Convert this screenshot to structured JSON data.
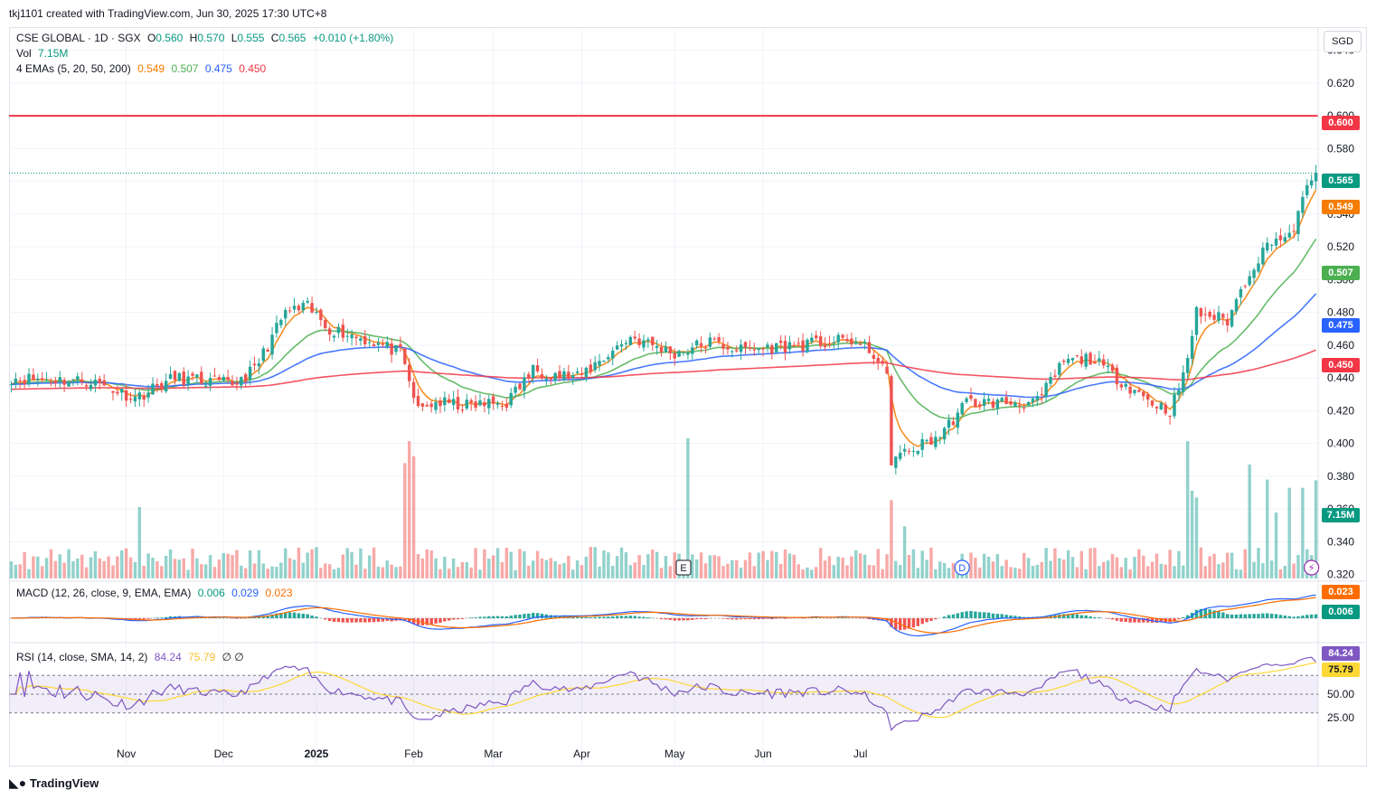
{
  "header": {
    "author_line": "tkj1101 created with TradingView.com, Jun 30, 2025 17:30 UTC+8"
  },
  "currency": "SGD",
  "legend": {
    "symbol": "CSE GLOBAL · 1D · SGX",
    "o_label": "O",
    "o_val": "0.560",
    "h_label": "H",
    "h_val": "0.570",
    "l_label": "L",
    "l_val": "0.555",
    "c_label": "C",
    "c_val": "0.565",
    "change": "+0.010 (+1.80%)",
    "vol_label": "Vol",
    "vol_val": "7.15M",
    "ema_label": "4 EMAs (5, 20, 50, 200)",
    "ema5": "0.549",
    "ema20": "0.507",
    "ema50": "0.475",
    "ema200": "0.450",
    "macd_label": "MACD (12, 26, close, 9, EMA, EMA)",
    "macd_hist": "0.006",
    "macd_line": "0.029",
    "macd_signal": "0.023",
    "rsi_label": "RSI (14, close, SMA, 14, 2)",
    "rsi_val": "84.24",
    "rsi_ma": "75.79",
    "rsi_ext": "∅ ∅"
  },
  "price_tags": {
    "resistance": "0.600",
    "last": "0.565",
    "ema5": "0.549",
    "ema20": "0.507",
    "ema50": "0.475",
    "ema200": "0.450",
    "vol": "7.15M",
    "macd_signal": "0.023",
    "macd_hist": "0.006",
    "rsi": "84.24",
    "rsi_ma": "75.79"
  },
  "colors": {
    "up": "#26a69a",
    "down": "#ef5350",
    "ema5": "#f57c00",
    "ema20": "#4caf50",
    "ema50": "#2962ff",
    "ema200": "#f23645",
    "rsi": "#7e57c2",
    "rsi_ma": "#fdd835",
    "resistance": "#f23645"
  },
  "event_markers": {
    "earnings": "E",
    "dividend": "D"
  },
  "brand": "TradingView",
  "chart_data": {
    "type": "candlestick",
    "title": "CSE GLOBAL · 1D · SGX",
    "price_axis_ticks": [
      "0.640",
      "0.620",
      "0.600",
      "0.580",
      "0.560",
      "0.540",
      "0.520",
      "0.500",
      "0.480",
      "0.460",
      "0.440",
      "0.420",
      "0.400",
      "0.380",
      "0.360",
      "0.340",
      "0.320"
    ],
    "ylim": [
      0.317,
      0.653
    ],
    "time_labels": [
      "Nov",
      "Dec",
      "2025",
      "Feb",
      "Mar",
      "Apr",
      "May",
      "Jun",
      "Jul"
    ],
    "resistance_level": 0.6,
    "rsi_axis_ticks": [
      "25.00",
      "50.00"
    ],
    "rsi_bands": [
      30,
      70
    ],
    "series_last_values": {
      "EMA5": 0.549,
      "EMA20": 0.507,
      "EMA50": 0.475,
      "EMA200": 0.45
    },
    "last_candle": {
      "open": 0.56,
      "high": 0.57,
      "low": 0.555,
      "close": 0.565,
      "volume": "7.15M"
    },
    "anchors": [
      {
        "day": 0,
        "price": 0.44
      },
      {
        "day": 18,
        "price": 0.438
      },
      {
        "day": 28,
        "price": 0.428
      },
      {
        "day": 37,
        "price": 0.44
      },
      {
        "day": 50,
        "price": 0.436
      },
      {
        "day": 55,
        "price": 0.445
      },
      {
        "day": 62,
        "price": 0.48
      },
      {
        "day": 67,
        "price": 0.483
      },
      {
        "day": 72,
        "price": 0.47
      },
      {
        "day": 82,
        "price": 0.462
      },
      {
        "day": 88,
        "price": 0.455
      },
      {
        "day": 92,
        "price": 0.42
      },
      {
        "day": 96,
        "price": 0.425
      },
      {
        "day": 103,
        "price": 0.423
      },
      {
        "day": 112,
        "price": 0.425
      },
      {
        "day": 118,
        "price": 0.445
      },
      {
        "day": 128,
        "price": 0.44
      },
      {
        "day": 140,
        "price": 0.465
      },
      {
        "day": 150,
        "price": 0.455
      },
      {
        "day": 158,
        "price": 0.462
      },
      {
        "day": 165,
        "price": 0.457
      },
      {
        "day": 178,
        "price": 0.46
      },
      {
        "day": 190,
        "price": 0.463
      },
      {
        "day": 195,
        "price": 0.455
      },
      {
        "day": 198,
        "price": 0.44
      },
      {
        "day": 199,
        "price": 0.39
      },
      {
        "day": 203,
        "price": 0.395
      },
      {
        "day": 210,
        "price": 0.405
      },
      {
        "day": 216,
        "price": 0.425
      },
      {
        "day": 225,
        "price": 0.425
      },
      {
        "day": 232,
        "price": 0.425
      },
      {
        "day": 238,
        "price": 0.45
      },
      {
        "day": 244,
        "price": 0.452
      },
      {
        "day": 250,
        "price": 0.44
      },
      {
        "day": 258,
        "price": 0.425
      },
      {
        "day": 262,
        "price": 0.42
      },
      {
        "day": 265,
        "price": 0.44
      },
      {
        "day": 268,
        "price": 0.48
      },
      {
        "day": 275,
        "price": 0.475
      },
      {
        "day": 280,
        "price": 0.505
      },
      {
        "day": 285,
        "price": 0.525
      },
      {
        "day": 289,
        "price": 0.525
      },
      {
        "day": 293,
        "price": 0.555
      },
      {
        "day": 295,
        "price": 0.565
      }
    ],
    "volume_peaks": [
      {
        "day": 29,
        "volume": 5.2
      },
      {
        "day": 89,
        "volume": 8.4
      },
      {
        "day": 90,
        "volume": 10
      },
      {
        "day": 91,
        "volume": 8.9
      },
      {
        "day": 153,
        "volume": 10.2
      },
      {
        "day": 199,
        "volume": 5.7
      },
      {
        "day": 202,
        "volume": 3.8
      },
      {
        "day": 266,
        "volume": 10
      },
      {
        "day": 267,
        "volume": 6.4
      },
      {
        "day": 268,
        "volume": 5.9
      },
      {
        "day": 280,
        "volume": 8.3
      },
      {
        "day": 284,
        "volume": 7.2
      },
      {
        "day": 286,
        "volume": 4.8
      },
      {
        "day": 289,
        "volume": 6.6
      },
      {
        "day": 292,
        "volume": 6.6
      },
      {
        "day": 295,
        "volume": 7.15
      }
    ]
  }
}
